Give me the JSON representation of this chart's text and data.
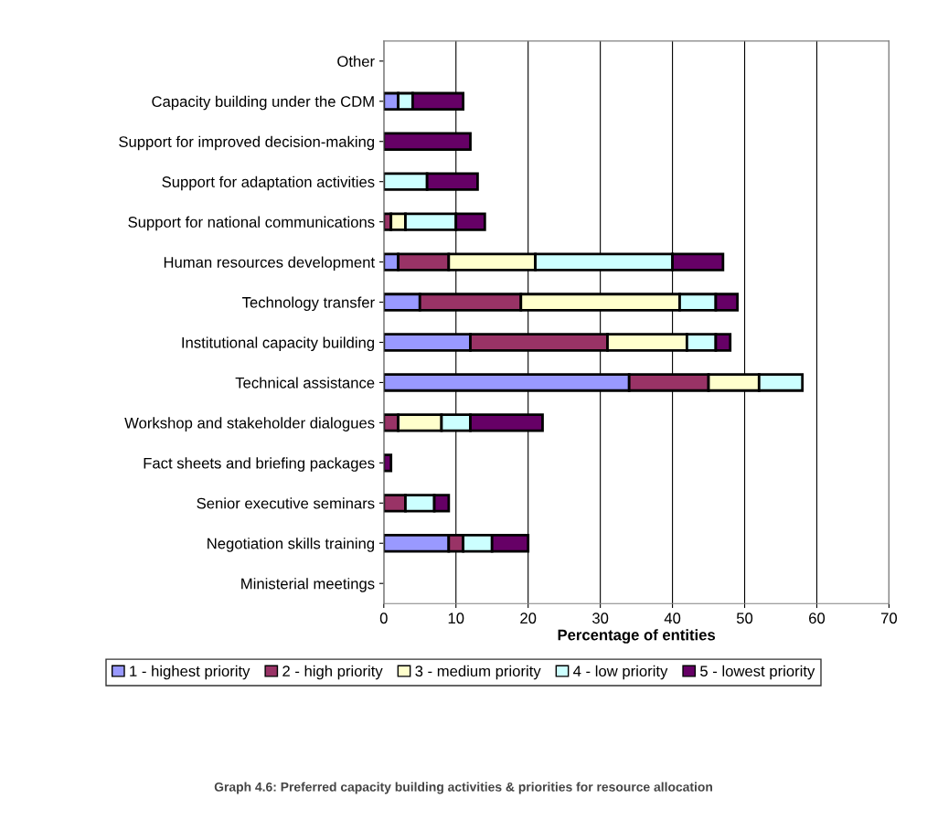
{
  "chart_data": {
    "type": "bar",
    "orientation": "horizontal",
    "stacked": true,
    "xlabel": "Percentage of entities",
    "categories": [
      "Other",
      "Capacity building under the CDM",
      "Support for improved decision-making",
      "Support for adaptation activities",
      "Support for national communications",
      "Human resources development",
      "Technology transfer",
      "Institutional capacity building",
      "Technical assistance",
      "Workshop and stakeholder dialogues",
      "Fact sheets and briefing packages",
      "Senior executive seminars",
      "Negotiation skills training",
      "Ministerial meetings"
    ],
    "series": [
      {
        "name": "1 - highest priority",
        "color": "#9999ff",
        "values": [
          0,
          2,
          0,
          0,
          0,
          2,
          5,
          12,
          34,
          0,
          0,
          0,
          9,
          0
        ]
      },
      {
        "name": "2 - high priority",
        "color": "#993366",
        "values": [
          0,
          0,
          0,
          0,
          1,
          7,
          14,
          19,
          11,
          2,
          0,
          3,
          2,
          0
        ]
      },
      {
        "name": "3 - medium priority",
        "color": "#ffffcc",
        "values": [
          0,
          0,
          0,
          0,
          2,
          12,
          22,
          11,
          7,
          6,
          0,
          0,
          0,
          0
        ]
      },
      {
        "name": "4 - low priority",
        "color": "#ccffff",
        "values": [
          0,
          2,
          0,
          6,
          7,
          19,
          5,
          4,
          6,
          4,
          0,
          4,
          4,
          0
        ]
      },
      {
        "name": "5 - lowest priority",
        "color": "#660066",
        "values": [
          0,
          7,
          12,
          7,
          4,
          7,
          3,
          2,
          0,
          10,
          1,
          2,
          5,
          0
        ]
      }
    ],
    "xlim": [
      0,
      70
    ],
    "xticks": [
      0,
      10,
      20,
      30,
      40,
      50,
      60,
      70
    ],
    "grid": "x",
    "legend": "bottom",
    "annotations": [
      "Graph 4.6: Preferred capacity building activities & priorities for resource allocation"
    ]
  }
}
